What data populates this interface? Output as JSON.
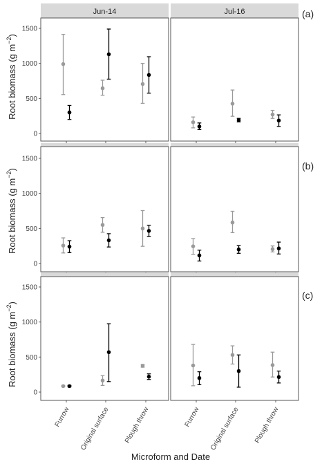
{
  "chart_data": {
    "type": "scatter",
    "subtype": "point-range faceted",
    "xlabel": "Microform and Date",
    "ylabel_main": "Root biomass (g m",
    "ylabel_sup": "−2",
    "ylabel_close": ")",
    "dates": [
      "Jun-14",
      "Jul-16"
    ],
    "categories": [
      "Furrow",
      "Original surface",
      "Plough throw"
    ],
    "ylim": [
      0,
      1700
    ],
    "yticks": [
      0,
      500,
      1000,
      1500
    ],
    "grid": false,
    "colors": {
      "grey_series": "#9a9a9a",
      "black_series": "#000000",
      "strip": "#d9d9d9"
    },
    "rows": [
      {
        "label": "(a)",
        "panels": [
          {
            "grey": [
              {
                "y": 990,
                "lo": 555,
                "hi": 1415
              },
              {
                "y": 645,
                "lo": 545,
                "hi": 760
              },
              {
                "y": 705,
                "lo": 430,
                "hi": 1000
              }
            ],
            "black": [
              {
                "y": 300,
                "lo": 200,
                "hi": 400
              },
              {
                "y": 1130,
                "lo": 775,
                "hi": 1490
              },
              {
                "y": 835,
                "lo": 575,
                "hi": 1095
              }
            ]
          },
          {
            "grey": [
              {
                "y": 160,
                "lo": 80,
                "hi": 235
              },
              {
                "y": 425,
                "lo": 245,
                "hi": 620
              },
              {
                "y": 270,
                "lo": 215,
                "hi": 330
              }
            ],
            "black": [
              {
                "y": 100,
                "lo": 55,
                "hi": 150
              },
              {
                "y": 190,
                "lo": 165,
                "hi": 215
              },
              {
                "y": 185,
                "lo": 100,
                "hi": 265
              }
            ]
          }
        ]
      },
      {
        "label": "(b)",
        "panels": [
          {
            "grey": [
              {
                "y": 255,
                "lo": 150,
                "hi": 365
              },
              {
                "y": 550,
                "lo": 445,
                "hi": 655
              },
              {
                "y": 500,
                "lo": 245,
                "hi": 755
              }
            ],
            "black": [
              {
                "y": 240,
                "lo": 155,
                "hi": 325
              },
              {
                "y": 330,
                "lo": 235,
                "hi": 425
              },
              {
                "y": 465,
                "lo": 385,
                "hi": 545
              }
            ]
          },
          {
            "grey": [
              {
                "y": 245,
                "lo": 130,
                "hi": 355
              },
              {
                "y": 585,
                "lo": 440,
                "hi": 745
              },
              {
                "y": 205,
                "lo": 165,
                "hi": 250
              }
            ],
            "black": [
              {
                "y": 115,
                "lo": 35,
                "hi": 190
              },
              {
                "y": 200,
                "lo": 145,
                "hi": 255
              },
              {
                "y": 215,
                "lo": 135,
                "hi": 305
              }
            ]
          }
        ]
      },
      {
        "label": "(c)",
        "panels": [
          {
            "grey": [
              {
                "y": 85,
                "lo": 75,
                "hi": 95
              },
              {
                "y": 165,
                "lo": 95,
                "hi": 235
              },
              {
                "y": 375,
                "lo": 355,
                "hi": 395
              }
            ],
            "black": [
              {
                "y": 85,
                "lo": 75,
                "hi": 95
              },
              {
                "y": 570,
                "lo": 150,
                "hi": 975
              },
              {
                "y": 220,
                "lo": 180,
                "hi": 260
              }
            ]
          },
          {
            "grey": [
              {
                "y": 380,
                "lo": 90,
                "hi": 680
              },
              {
                "y": 530,
                "lo": 400,
                "hi": 660
              },
              {
                "y": 385,
                "lo": 215,
                "hi": 570
              }
            ],
            "black": [
              {
                "y": 200,
                "lo": 105,
                "hi": 290
              },
              {
                "y": 300,
                "lo": 70,
                "hi": 530
              },
              {
                "y": 215,
                "lo": 130,
                "hi": 300
              }
            ]
          }
        ]
      }
    ]
  }
}
